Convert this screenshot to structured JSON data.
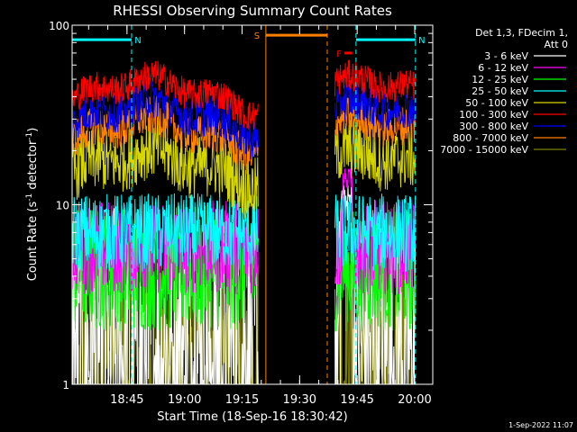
{
  "chart_data": {
    "type": "line",
    "title": "RHESSI Observing Summary Count Rates",
    "xlabel": "Start Time (18-Sep-16 18:30:42)",
    "ylabel": "Count Rate (s",
    "ylabel_sup": "-1",
    "ylabel_tail": " detector",
    "ylabel_end": ")",
    "y_scale": "log",
    "ylim": [
      1,
      100
    ],
    "xlim_minutes": [
      0,
      94
    ],
    "y_ticks": [
      {
        "v": 1,
        "label": "1"
      },
      {
        "v": 10,
        "label": "10"
      },
      {
        "v": 100,
        "label": "100"
      }
    ],
    "x_ticks": [
      {
        "min": 14.3,
        "label": "18:45"
      },
      {
        "min": 29.3,
        "label": "19:00"
      },
      {
        "min": 44.3,
        "label": "19:15"
      },
      {
        "min": 59.3,
        "label": "19:30"
      },
      {
        "min": 74.3,
        "label": "19:45"
      },
      {
        "min": 89.3,
        "label": "20:00"
      }
    ],
    "legend_header": [
      "Det 1,3, FDecim 1,",
      "Att 0"
    ],
    "series": [
      {
        "name": "3 - 6 keV",
        "color": "#ffffff",
        "level": 1.5,
        "jitter": 0.38,
        "flare": true
      },
      {
        "name": "6 - 12 keV",
        "color": "#ff00ff",
        "level": 5.8,
        "jitter": 0.12
      },
      {
        "name": "12 - 25 keV",
        "color": "#00ff00",
        "level": 4.4,
        "jitter": 0.16
      },
      {
        "name": "25 - 50 keV",
        "color": "#00ffff",
        "level": 7.0,
        "jitter": 0.1
      },
      {
        "name": "50 - 100 keV",
        "color": "#d6d600",
        "level": 16.5,
        "jitter": 0.08
      },
      {
        "name": "100 - 300 keV",
        "color": "#ff0000",
        "level": 42,
        "jitter": 0.04
      },
      {
        "name": "300 - 800 keV",
        "color": "#0000ff",
        "level": 31,
        "jitter": 0.05
      },
      {
        "name": "800 - 7000 keV",
        "color": "#ff8000",
        "level": 25,
        "jitter": 0.05
      },
      {
        "name": "7000 - 15000 keV",
        "color": "#808000",
        "level": 1.3,
        "jitter": 0.3
      }
    ],
    "segments_minutes": [
      [
        0,
        48.5
      ],
      [
        68.5,
        89.5
      ]
    ],
    "flags": [
      {
        "label": "N",
        "color": "#00ffff",
        "start": 0,
        "end": 15.5,
        "level": 83
      },
      {
        "label": "N",
        "color": "#00ffff",
        "start": 74,
        "end": 89.5,
        "level": 83
      },
      {
        "label": "S",
        "color": "#ff8000",
        "start": 50.5,
        "end": 66.5,
        "level": 88
      },
      {
        "label": "F",
        "color": "#ff0000",
        "start": 71,
        "end": 73,
        "level": 70
      }
    ],
    "vlines": [
      {
        "min": 0,
        "color": "#00ffff"
      },
      {
        "min": 15.5,
        "color": "#00ffff"
      },
      {
        "min": 50.5,
        "color": "#ff8000"
      },
      {
        "min": 66.5,
        "color": "#ff8000"
      },
      {
        "min": 74,
        "color": "#00ffff"
      },
      {
        "min": 89.5,
        "color": "#00ffff"
      }
    ],
    "grid": false,
    "legend_placement": "right"
  },
  "footer_date": "1-Sep-2022 11:07"
}
